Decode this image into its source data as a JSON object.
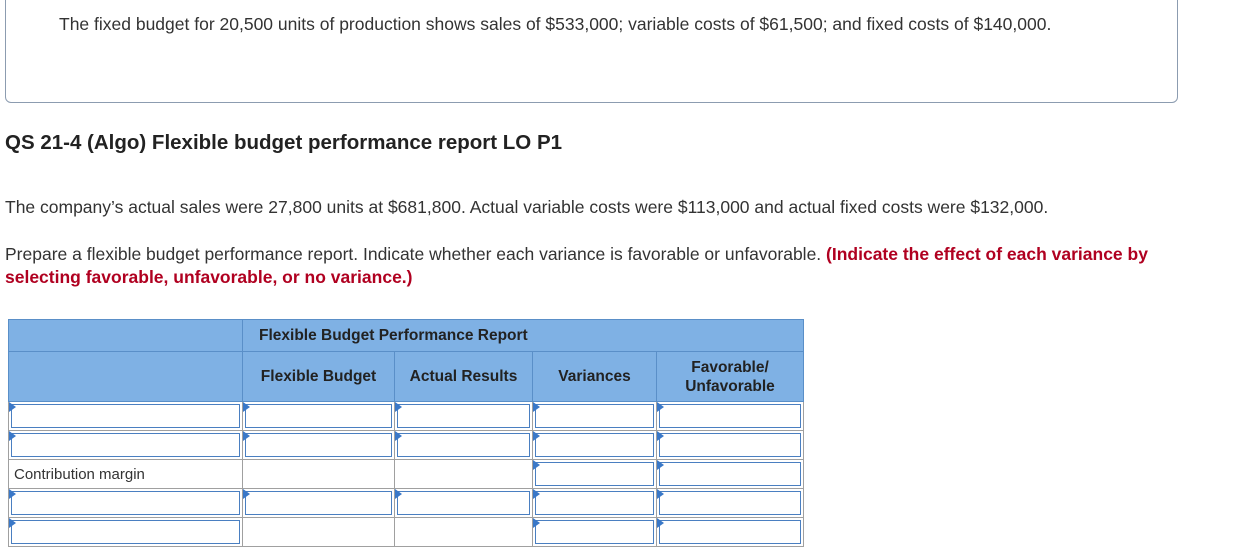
{
  "intro": {
    "fixed_budget_text": "The fixed budget for 20,500 units of production shows sales of $533,000; variable costs of $61,500; and fixed costs of $140,000."
  },
  "question": {
    "title": "QS 21-4 (Algo) Flexible budget performance report LO P1",
    "actual_text": "The company’s actual sales were 27,800 units at $681,800. Actual variable costs were $113,000 and actual fixed costs were $132,000.",
    "instruction_text": "Prepare a flexible budget performance report. Indicate whether each variance is favorable or unfavorable. ",
    "instruction_emphasis": "(Indicate the effect of each variance by selecting favorable, unfavorable, or no variance.)"
  },
  "report": {
    "title": "Flexible Budget Performance Report",
    "columns": [
      "",
      "Flexible Budget",
      "Actual Results",
      "Variances",
      "Favorable/ Unfavorable"
    ],
    "rows": [
      {
        "label": "",
        "label_editable": true,
        "editable": [
          true,
          true,
          true,
          true
        ]
      },
      {
        "label": "",
        "label_editable": true,
        "editable": [
          true,
          true,
          true,
          true
        ]
      },
      {
        "label": "Contribution margin",
        "label_editable": false,
        "editable": [
          false,
          false,
          true,
          true
        ]
      },
      {
        "label": "",
        "label_editable": true,
        "editable": [
          true,
          true,
          true,
          true
        ]
      },
      {
        "label": "",
        "label_editable": true,
        "editable": [
          false,
          false,
          true,
          true
        ]
      }
    ]
  },
  "colors": {
    "header_bg": "#7fb1e4",
    "input_border": "#4a7fc1",
    "emphasis_red": "#b00020"
  }
}
